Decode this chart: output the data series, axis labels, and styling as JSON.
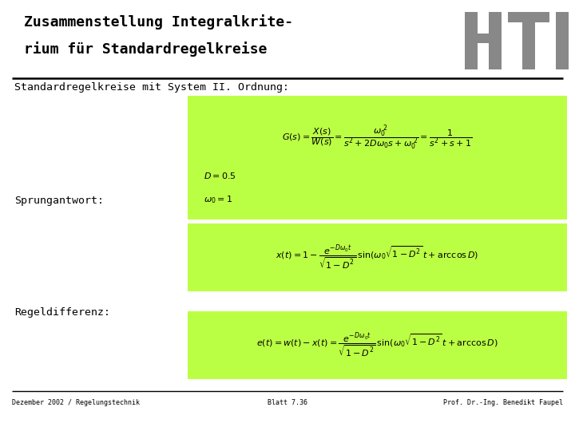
{
  "title_line1": "Zusammenstellung Integralkrite-",
  "title_line2": "rium für Standardregelkreise",
  "subtitle": "Standardregelkreise mit System II. Ordnung:",
  "label_sprungantwort": "Sprungantwort:",
  "label_regeldifferenz": "Regeldifferenz:",
  "footer_left": "Dezember 2002 / Regelungstechnik",
  "footer_center": "Blatt 7.36",
  "footer_right": "Prof. Dr.-Ing. Benedikt Faupel",
  "bg_color": "#ffffff",
  "green_color": "#bbff44",
  "logo_color": "#888888",
  "title_fontsize": 13,
  "subtitle_fontsize": 9.5,
  "label_fontsize": 9.5,
  "formula_fontsize": 8.0,
  "footer_fontsize": 6.0
}
